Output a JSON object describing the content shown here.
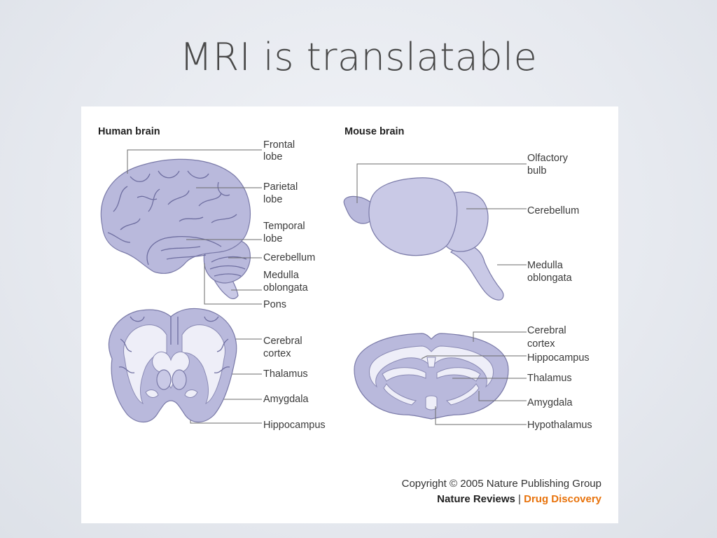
{
  "slide": {
    "title": "MRI is translatable"
  },
  "human": {
    "heading": "Human brain",
    "labels": {
      "frontal1": "Frontal",
      "frontal2": "lobe",
      "parietal1": "Parietal",
      "parietal2": "lobe",
      "temporal1": "Temporal",
      "temporal2": "lobe",
      "cerebellum": "Cerebellum",
      "medulla1": "Medulla",
      "medulla2": "oblongata",
      "pons": "Pons",
      "cortex1": "Cerebral",
      "cortex2": "cortex",
      "thalamus": "Thalamus",
      "amygdala": "Amygdala",
      "hippocampus": "Hippocampus"
    }
  },
  "mouse": {
    "heading": "Mouse brain",
    "labels": {
      "olfactory1": "Olfactory",
      "olfactory2": "bulb",
      "cerebellum": "Cerebellum",
      "medulla1": "Medulla",
      "medulla2": "oblongata",
      "cortex1": "Cerebral",
      "cortex2": "cortex",
      "hippocampus": "Hippocampus",
      "thalamus": "Thalamus",
      "amygdala": "Amygdala",
      "hypothalamus": "Hypothalamus"
    }
  },
  "credits": {
    "copyright": "Copyright © 2005 Nature Publishing Group",
    "journal": "Nature Reviews",
    "separator": " | ",
    "section": "Drug Discovery"
  },
  "colors": {
    "tissue": "#b9b9dc",
    "accent": "#e8730c"
  }
}
